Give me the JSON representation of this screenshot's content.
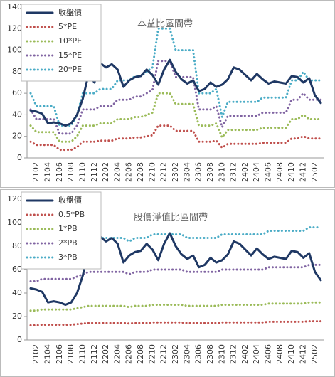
{
  "chart_data": [
    {
      "type": "line",
      "title": "本益比區間帶",
      "categories": [
        null,
        "2102",
        null,
        "2104",
        null,
        "2106",
        null,
        "2108",
        null,
        "2110",
        null,
        "2112",
        null,
        "2202",
        null,
        "2204",
        null,
        "2206",
        null,
        "2208",
        null,
        "2210",
        null,
        "2212",
        null,
        "2302",
        null,
        "2304",
        null,
        "2306",
        null,
        "2308",
        null,
        "2310",
        null,
        "2312",
        null,
        "2402",
        null,
        "2404",
        null,
        "2406",
        null,
        "2408",
        null,
        "2410",
        null,
        "2412",
        null,
        "2502",
        null
      ],
      "ylim": [
        0,
        140
      ],
      "yticks": [
        0,
        20,
        40,
        60,
        80,
        100,
        120,
        140
      ],
      "series": [
        {
          "name": "收盤價",
          "color": "#1f3864",
          "values": [
            44,
            43,
            41,
            32,
            33,
            32,
            30,
            32,
            40,
            55,
            78,
            70,
            88,
            84,
            87,
            82,
            66,
            72,
            75,
            76,
            82,
            77,
            68,
            82,
            91,
            80,
            73,
            69,
            72,
            62,
            64,
            70,
            66,
            68,
            73,
            84,
            82,
            77,
            72,
            78,
            73,
            69,
            71,
            70,
            69,
            76,
            75,
            70,
            74,
            58,
            51
          ]
        },
        {
          "name": "5*PE",
          "color": "#c0504d",
          "values": [
            15,
            12,
            12,
            12,
            12,
            7.5,
            7.5,
            7.5,
            10,
            15,
            15,
            15,
            16,
            16,
            16,
            18,
            18,
            18,
            19,
            19,
            20,
            21,
            30,
            30,
            30,
            25,
            25,
            25,
            25,
            15,
            15,
            15,
            16,
            9.5,
            13,
            13,
            13,
            13,
            13,
            13,
            14,
            14,
            14,
            14,
            14,
            18,
            18,
            20,
            18,
            18,
            18
          ]
        },
        {
          "name": "10*PE",
          "color": "#9bbb59",
          "values": [
            30,
            24,
            24,
            24,
            24,
            15,
            15,
            15,
            20,
            30,
            30,
            30,
            32,
            32,
            32,
            36,
            36,
            36,
            38,
            38,
            40,
            42,
            60,
            60,
            60,
            50,
            50,
            50,
            50,
            30,
            30,
            30,
            32,
            19,
            26,
            26,
            26,
            26,
            26,
            26,
            28,
            28,
            28,
            28,
            28,
            36,
            36,
            40,
            36,
            36,
            36
          ]
        },
        {
          "name": "15*PE",
          "color": "#8064a2",
          "values": [
            45,
            36,
            36,
            36,
            36,
            22.5,
            22.5,
            22.5,
            30,
            45,
            45,
            45,
            48,
            48,
            48,
            54,
            54,
            54,
            57,
            57,
            60,
            63,
            90,
            90,
            90,
            75,
            75,
            75,
            75,
            45,
            45,
            45,
            48,
            28.5,
            39,
            39,
            39,
            39,
            39,
            39,
            42,
            42,
            42,
            42,
            42,
            54,
            54,
            60,
            54,
            54,
            54
          ]
        },
        {
          "name": "20*PE",
          "color": "#4bacc6",
          "values": [
            60,
            48,
            48,
            48,
            48,
            30,
            30,
            30,
            40,
            60,
            60,
            60,
            64,
            64,
            64,
            72,
            72,
            72,
            76,
            76,
            80,
            84,
            120,
            120,
            120,
            100,
            100,
            100,
            100,
            60,
            60,
            60,
            64,
            38,
            52,
            52,
            52,
            52,
            52,
            52,
            56,
            56,
            56,
            56,
            56,
            72,
            72,
            80,
            72,
            72,
            72
          ]
        }
      ]
    },
    {
      "type": "line",
      "title": "股價淨值比區間帶",
      "categories": [
        null,
        "2102",
        null,
        "2104",
        null,
        "2106",
        null,
        "2108",
        null,
        "2110",
        null,
        "2112",
        null,
        "2202",
        null,
        "2204",
        null,
        "2206",
        null,
        "2208",
        null,
        "2210",
        null,
        "2212",
        null,
        "2302",
        null,
        "2304",
        null,
        "2306",
        null,
        "2308",
        null,
        "2310",
        null,
        "2312",
        null,
        "2402",
        null,
        "2404",
        null,
        "2406",
        null,
        "2408",
        null,
        "2410",
        null,
        "2412",
        null,
        "2502",
        null
      ],
      "ylim": [
        0,
        120
      ],
      "yticks": [
        0,
        20,
        40,
        60,
        80,
        100,
        120
      ],
      "series": [
        {
          "name": "收盤價",
          "color": "#1f3864",
          "values": [
            44,
            43,
            41,
            32,
            33,
            32,
            30,
            32,
            40,
            55,
            78,
            70,
            88,
            84,
            87,
            82,
            66,
            72,
            75,
            76,
            82,
            77,
            68,
            82,
            91,
            80,
            73,
            69,
            72,
            62,
            64,
            70,
            66,
            68,
            73,
            84,
            82,
            77,
            72,
            78,
            73,
            69,
            71,
            70,
            69,
            76,
            75,
            70,
            74,
            58,
            51
          ]
        },
        {
          "name": "0.5*PB",
          "color": "#c0504d",
          "values": [
            12.5,
            12.5,
            13,
            13,
            13,
            13,
            13,
            13,
            13.5,
            14,
            14.5,
            14.5,
            14.5,
            14.5,
            14.5,
            14.5,
            14.5,
            14,
            14.5,
            14.5,
            14.5,
            15,
            15,
            15,
            15,
            15,
            15,
            14.5,
            14.5,
            14.5,
            14.5,
            14.5,
            14.5,
            15,
            15,
            15,
            15,
            15,
            15,
            15,
            15,
            15.5,
            15.5,
            15.5,
            15.5,
            15.5,
            15.5,
            15.5,
            16,
            16,
            16
          ]
        },
        {
          "name": "1*PB",
          "color": "#9bbb59",
          "values": [
            25,
            25,
            26,
            26,
            26,
            26,
            26,
            26,
            27,
            28,
            29,
            29,
            29,
            29,
            29,
            29,
            29,
            28,
            29,
            29,
            29,
            30,
            30,
            30,
            30,
            30,
            30,
            29,
            29,
            29,
            29,
            29,
            29,
            30,
            30,
            30,
            30,
            30,
            30,
            30,
            30,
            31,
            31,
            31,
            31,
            31,
            31,
            31,
            32,
            32,
            32
          ]
        },
        {
          "name": "2*PB",
          "color": "#8064a2",
          "values": [
            50,
            50,
            52,
            52,
            52,
            52,
            52,
            52,
            54,
            56,
            58,
            58,
            58,
            58,
            58,
            58,
            58,
            56,
            58,
            58,
            58,
            60,
            60,
            60,
            60,
            60,
            60,
            58,
            58,
            58,
            58,
            58,
            58,
            60,
            60,
            60,
            60,
            60,
            60,
            60,
            60,
            62,
            62,
            62,
            62,
            62,
            62,
            62,
            64,
            64,
            64
          ]
        },
        {
          "name": "3*PB",
          "color": "#4bacc6",
          "values": [
            75,
            75,
            78,
            78,
            78,
            78,
            78,
            78,
            81,
            84,
            87,
            87,
            87,
            87,
            87,
            87,
            87,
            84,
            87,
            87,
            87,
            90,
            90,
            90,
            90,
            90,
            90,
            87,
            87,
            87,
            87,
            87,
            87,
            90,
            90,
            90,
            90,
            90,
            90,
            90,
            90,
            93,
            93,
            93,
            93,
            93,
            93,
            93,
            96,
            96,
            96
          ]
        }
      ]
    }
  ]
}
